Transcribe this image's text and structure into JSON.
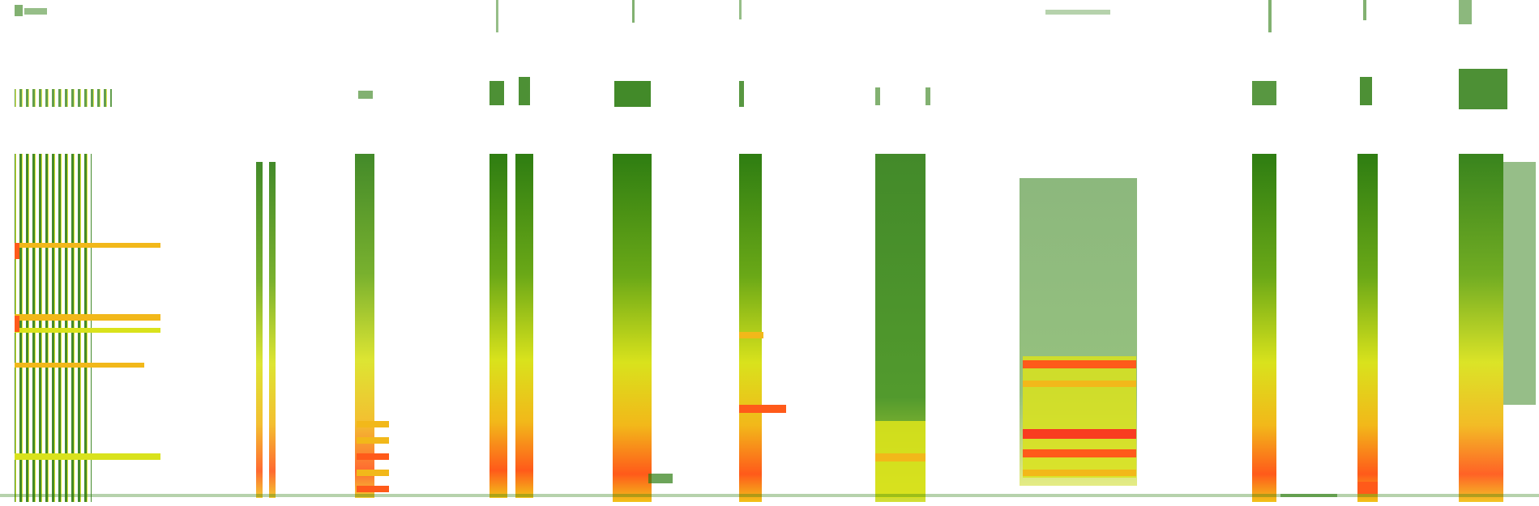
{
  "image": {
    "kind": "spectrogram",
    "background_color": "#ffffff",
    "colormap": [
      "#2e7d12",
      "#7fb21a",
      "#d9e21c",
      "#f2b81a",
      "#ff5a1a",
      "#ff1f1f"
    ]
  }
}
